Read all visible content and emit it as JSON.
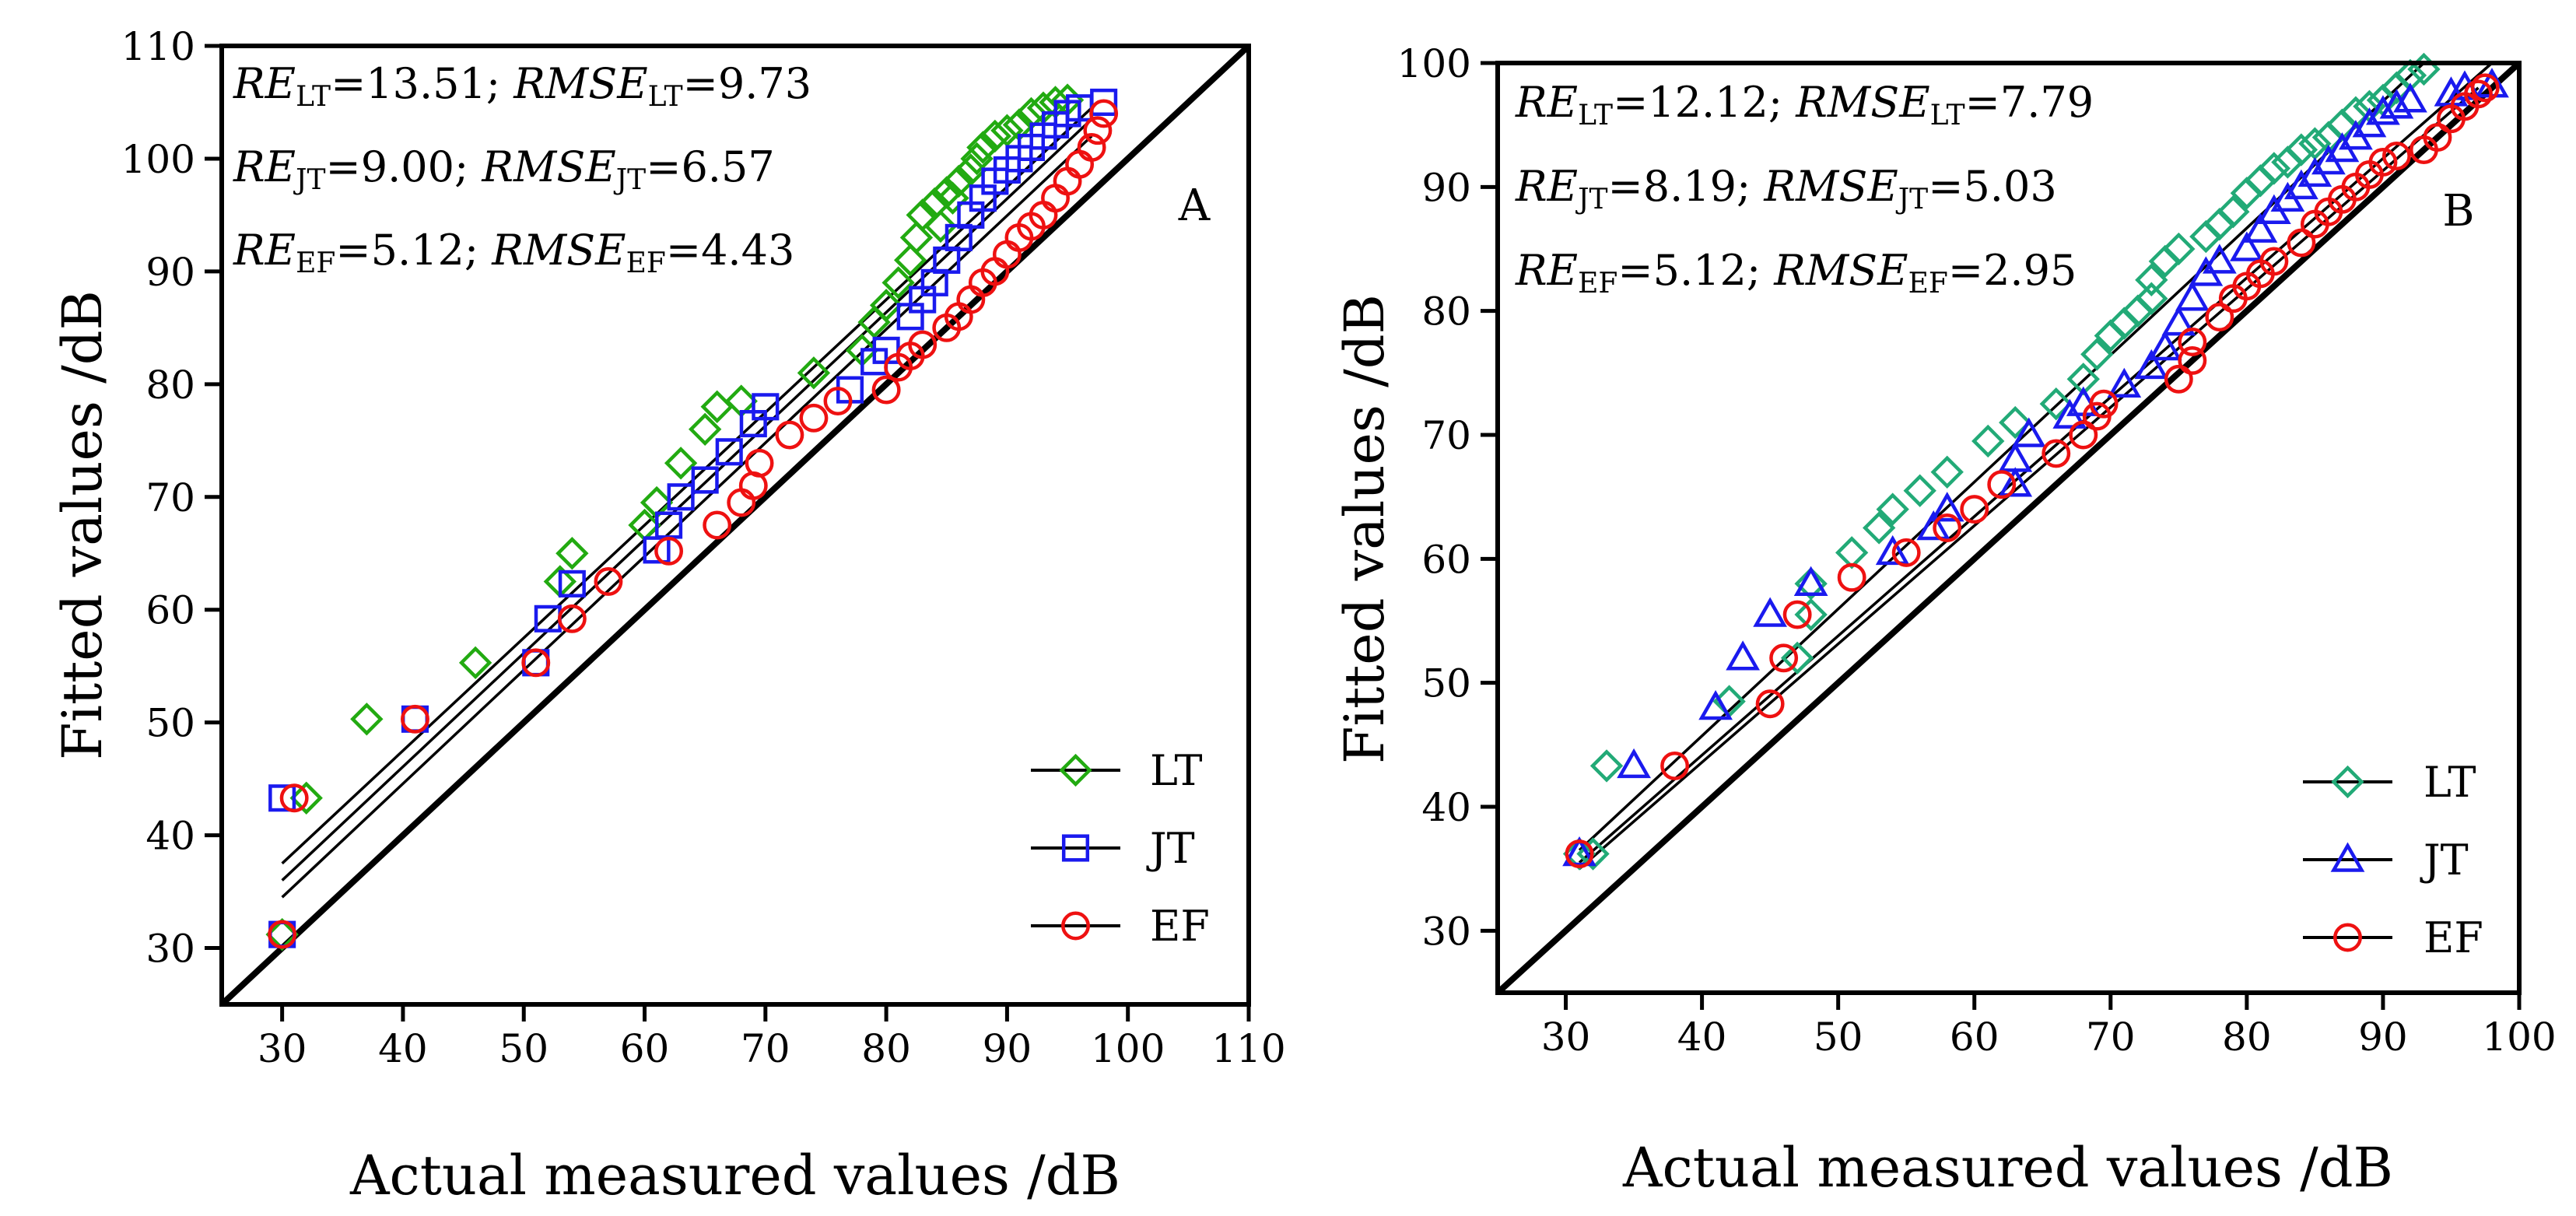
{
  "colors": {
    "LT_A": "#22aa11",
    "LT_B": "#22aa77",
    "JT": "#1a1aee",
    "EF": "#ee1111",
    "axis": "#000000"
  },
  "chart_data": [
    {
      "type": "scatter",
      "panel_label": "A",
      "xlabel": "Actual measured values /dB",
      "ylabel": "Fitted values /dB",
      "xlim": [
        25,
        110
      ],
      "ylim": [
        25,
        110
      ],
      "xticks": [
        "30",
        "40",
        "50",
        "60",
        "70",
        "80",
        "90",
        "100",
        "110"
      ],
      "yticks": [
        "30",
        "40",
        "50",
        "60",
        "70",
        "80",
        "90",
        "100",
        "110"
      ],
      "stats": [
        {
          "re_label": "RE",
          "re_sub": "LT",
          "re_value": "=13.51; ",
          "rmse_label": "RMSE",
          "rmse_sub": "LT",
          "rmse_value": "=9.73"
        },
        {
          "re_label": "RE",
          "re_sub": "JT",
          "re_value": "=9.00; ",
          "rmse_label": "RMSE",
          "rmse_sub": "JT",
          "rmse_value": "=6.57"
        },
        {
          "re_label": "RE",
          "re_sub": "EF",
          "re_value": "=5.12; ",
          "rmse_label": "RMSE",
          "rmse_sub": "EF",
          "rmse_value": "=4.43"
        }
      ],
      "reference_line": {
        "x": [
          25,
          110
        ],
        "y": [
          25,
          110
        ]
      },
      "series": [
        {
          "name": "LT",
          "marker": "diamond",
          "color": "#22aa11",
          "fit": {
            "x": [
              30,
              97
            ],
            "y": [
              37.5,
              104.5
            ]
          },
          "points": [
            [
              30,
              31.2
            ],
            [
              32,
              43.3
            ],
            [
              37,
              50.3
            ],
            [
              46,
              55.3
            ],
            [
              53,
              62.5
            ],
            [
              54,
              65
            ],
            [
              60,
              67.5
            ],
            [
              61,
              69.5
            ],
            [
              63,
              73
            ],
            [
              65,
              76
            ],
            [
              66,
              78
            ],
            [
              68,
              78.5
            ],
            [
              74,
              81
            ],
            [
              78,
              83
            ],
            [
              79,
              85.5
            ],
            [
              80,
              87
            ],
            [
              81,
              89
            ],
            [
              82,
              91
            ],
            [
              82.5,
              93
            ],
            [
              83,
              95
            ],
            [
              84,
              96
            ],
            [
              85,
              97
            ],
            [
              86,
              98
            ],
            [
              87,
              99
            ],
            [
              87.5,
              100
            ],
            [
              88,
              101
            ],
            [
              89,
              102
            ],
            [
              90,
              102.5
            ],
            [
              91,
              103
            ],
            [
              92,
              104
            ],
            [
              93,
              104.5
            ],
            [
              94,
              105
            ],
            [
              95,
              105.2
            ],
            [
              85.5,
              96.5
            ],
            [
              84.5,
              94
            ]
          ]
        },
        {
          "name": "JT",
          "marker": "square",
          "color": "#1a1aee",
          "fit": {
            "x": [
              30,
              97
            ],
            "y": [
              36,
              103.5
            ]
          },
          "points": [
            [
              30,
              43.3
            ],
            [
              30,
              31.2
            ],
            [
              41,
              50.3
            ],
            [
              51,
              55.3
            ],
            [
              52,
              59.2
            ],
            [
              54,
              62.3
            ],
            [
              61,
              65.3
            ],
            [
              62,
              67.5
            ],
            [
              63,
              70
            ],
            [
              65,
              71.5
            ],
            [
              67,
              74
            ],
            [
              69,
              76.5
            ],
            [
              70,
              78
            ],
            [
              77,
              79.5
            ],
            [
              79,
              82
            ],
            [
              80,
              83
            ],
            [
              82,
              86
            ],
            [
              83,
              87.5
            ],
            [
              84,
              89
            ],
            [
              85,
              91
            ],
            [
              86,
              93
            ],
            [
              87,
              95
            ],
            [
              88,
              96.5
            ],
            [
              89,
              98
            ],
            [
              90,
              99
            ],
            [
              91,
              100
            ],
            [
              92,
              101
            ],
            [
              93,
              102
            ],
            [
              94,
              103
            ],
            [
              95,
              104
            ],
            [
              96,
              104.5
            ],
            [
              98,
              105
            ]
          ]
        },
        {
          "name": "EF",
          "marker": "circle",
          "color": "#ee1111",
          "fit": {
            "x": [
              30,
              97
            ],
            "y": [
              34.5,
              102
            ]
          },
          "points": [
            [
              30,
              31.2
            ],
            [
              31,
              43.3
            ],
            [
              41,
              50.3
            ],
            [
              51,
              55.3
            ],
            [
              54,
              59.2
            ],
            [
              57,
              62.5
            ],
            [
              62,
              65.2
            ],
            [
              66,
              67.5
            ],
            [
              68,
              69.5
            ],
            [
              69,
              71
            ],
            [
              69.5,
              73
            ],
            [
              72,
              75.5
            ],
            [
              74,
              77
            ],
            [
              76,
              78.5
            ],
            [
              80,
              79.5
            ],
            [
              81,
              81.5
            ],
            [
              82,
              82.5
            ],
            [
              83,
              83.5
            ],
            [
              85,
              85
            ],
            [
              86,
              86
            ],
            [
              87,
              87.5
            ],
            [
              88,
              89
            ],
            [
              89,
              90
            ],
            [
              90,
              91.5
            ],
            [
              91,
              93
            ],
            [
              92,
              94
            ],
            [
              93,
              95
            ],
            [
              94,
              96.5
            ],
            [
              95,
              98
            ],
            [
              96,
              99.5
            ],
            [
              97,
              101
            ],
            [
              97.5,
              102.5
            ],
            [
              98,
              104
            ]
          ]
        }
      ],
      "legend": [
        "LT",
        "JT",
        "EF"
      ],
      "legend_position": "bottom-right"
    },
    {
      "type": "scatter",
      "panel_label": "B",
      "xlabel": "Actual measured values /dB",
      "ylabel": "Fitted values /dB",
      "xlim": [
        25,
        100
      ],
      "ylim": [
        25,
        100
      ],
      "xticks": [
        "30",
        "40",
        "50",
        "60",
        "70",
        "80",
        "90",
        "100"
      ],
      "yticks": [
        "30",
        "40",
        "50",
        "60",
        "70",
        "80",
        "90",
        "100"
      ],
      "stats": [
        {
          "re_label": "RE",
          "re_sub": "LT",
          "re_value": "=12.12; ",
          "rmse_label": "RMSE",
          "rmse_sub": "LT",
          "rmse_value": "=7.79"
        },
        {
          "re_label": "RE",
          "re_sub": "JT",
          "re_value": "=8.19; ",
          "rmse_label": "RMSE",
          "rmse_sub": "JT",
          "rmse_value": "=5.03"
        },
        {
          "re_label": "RE",
          "re_sub": "EF",
          "re_value": "=5.12; ",
          "rmse_label": "RMSE",
          "rmse_sub": "EF",
          "rmse_value": "=2.95"
        }
      ],
      "reference_line": {
        "x": [
          25,
          100
        ],
        "y": [
          25,
          100
        ]
      },
      "series": [
        {
          "name": "LT",
          "marker": "diamond",
          "color": "#22aa77",
          "fit": {
            "x": [
              31,
              93
            ],
            "y": [
              36.5,
              100
            ]
          },
          "points": [
            [
              31,
              36.2
            ],
            [
              32,
              36.2
            ],
            [
              33,
              43.3
            ],
            [
              42,
              48.5
            ],
            [
              47,
              52
            ],
            [
              48,
              55.5
            ],
            [
              48,
              58
            ],
            [
              51,
              60.5
            ],
            [
              53,
              62.5
            ],
            [
              54,
              64
            ],
            [
              56,
              65.5
            ],
            [
              58,
              67
            ],
            [
              61,
              69.5
            ],
            [
              63,
              71
            ],
            [
              66,
              72.5
            ],
            [
              68,
              74.5
            ],
            [
              69,
              76.5
            ],
            [
              70,
              78
            ],
            [
              71,
              79
            ],
            [
              72,
              80
            ],
            [
              73,
              81
            ],
            [
              73,
              82.5
            ],
            [
              74,
              84
            ],
            [
              75,
              85
            ],
            [
              77,
              86
            ],
            [
              78,
              87
            ],
            [
              79,
              88
            ],
            [
              80,
              89.5
            ],
            [
              81,
              90.5
            ],
            [
              82,
              91.5
            ],
            [
              83,
              92
            ],
            [
              84,
              93
            ],
            [
              85,
              93.5
            ],
            [
              86,
              94
            ],
            [
              87,
              95
            ],
            [
              88,
              96
            ],
            [
              89,
              96.5
            ],
            [
              90,
              97
            ],
            [
              91,
              98
            ],
            [
              92,
              99
            ],
            [
              93,
              99.5
            ]
          ]
        },
        {
          "name": "JT",
          "marker": "triangle",
          "color": "#1a1aee",
          "fit": {
            "x": [
              31,
              98
            ],
            "y": [
              35.5,
              100
            ]
          },
          "points": [
            [
              31,
              36.2
            ],
            [
              35,
              43.3
            ],
            [
              41,
              48
            ],
            [
              43,
              52
            ],
            [
              45,
              55.5
            ],
            [
              48,
              58
            ],
            [
              54,
              60.5
            ],
            [
              57,
              62.5
            ],
            [
              58,
              64
            ],
            [
              63,
              66
            ],
            [
              63,
              68
            ],
            [
              64,
              70
            ],
            [
              67,
              71.5
            ],
            [
              68,
              72.5
            ],
            [
              71,
              74
            ],
            [
              73,
              75.5
            ],
            [
              74,
              77
            ],
            [
              75,
              79
            ],
            [
              76,
              81
            ],
            [
              77,
              83
            ],
            [
              78,
              84
            ],
            [
              80,
              85
            ],
            [
              81,
              86.5
            ],
            [
              82,
              88
            ],
            [
              83,
              89
            ],
            [
              84,
              90
            ],
            [
              85,
              91
            ],
            [
              86,
              92
            ],
            [
              87,
              93
            ],
            [
              88,
              94
            ],
            [
              89,
              95
            ],
            [
              90,
              96
            ],
            [
              91,
              96.5
            ],
            [
              92,
              97
            ],
            [
              95,
              97.5
            ],
            [
              96,
              98
            ],
            [
              98,
              98.2
            ]
          ]
        },
        {
          "name": "EF",
          "marker": "circle",
          "color": "#ee1111",
          "fit": {
            "x": [
              31,
              97
            ],
            "y": [
              35,
              98
            ]
          },
          "points": [
            [
              31,
              36.2
            ],
            [
              38,
              43.3
            ],
            [
              45,
              48.3
            ],
            [
              46,
              52
            ],
            [
              47,
              55.5
            ],
            [
              51,
              58.5
            ],
            [
              55,
              60.5
            ],
            [
              58,
              62.5
            ],
            [
              60,
              64
            ],
            [
              62,
              66
            ],
            [
              66,
              68.5
            ],
            [
              68,
              70
            ],
            [
              69,
              71.5
            ],
            [
              69.5,
              72.5
            ],
            [
              75,
              74.5
            ],
            [
              76,
              76
            ],
            [
              76,
              77.5
            ],
            [
              78,
              79.5
            ],
            [
              79,
              81
            ],
            [
              80,
              82
            ],
            [
              81,
              83
            ],
            [
              82,
              84
            ],
            [
              84,
              85.5
            ],
            [
              85,
              87
            ],
            [
              86,
              88
            ],
            [
              87,
              89
            ],
            [
              88,
              90
            ],
            [
              89,
              91
            ],
            [
              90,
              92
            ],
            [
              91,
              92.5
            ],
            [
              93,
              93
            ],
            [
              94,
              94
            ],
            [
              95,
              95.5
            ],
            [
              96,
              96.5
            ],
            [
              97,
              97.5
            ],
            [
              97.5,
              98
            ]
          ]
        }
      ],
      "legend": [
        "LT",
        "JT",
        "EF"
      ],
      "legend_position": "bottom-right"
    }
  ]
}
